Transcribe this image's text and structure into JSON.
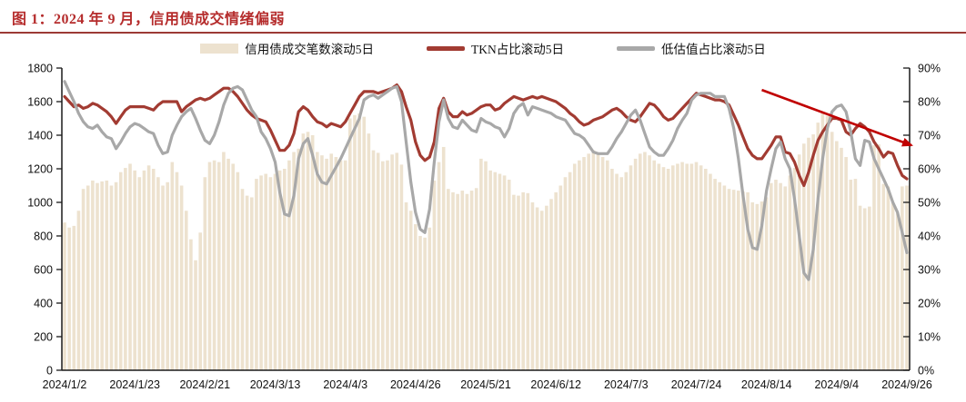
{
  "title": "图 1：2024 年 9 月，信用债成交情绪偏弱",
  "colors": {
    "title": "#B52C2C",
    "rule": "#9C3A35",
    "bar": "#EDE2CF",
    "tkn_line": "#A23B32",
    "undervalue_line": "#A8A8A8",
    "arrow": "#C00000",
    "axis": "#1a1a1a"
  },
  "legend": {
    "items": [
      {
        "label": "信用债成交笔数滚动5日",
        "type": "bar",
        "color": "#EDE2CF"
      },
      {
        "label": "TKN占比滚动5日",
        "type": "line",
        "color": "#A23B32"
      },
      {
        "label": "低估值占比滚动5日",
        "type": "line",
        "color": "#A8A8A8"
      }
    ]
  },
  "chart_data": {
    "type": "bar",
    "subtype": "bar+line combo, dual axis",
    "n_points": 181,
    "x_tick_labels": [
      "2024/1/2",
      "2024/1/23",
      "2024/2/21",
      "2024/3/13",
      "2024/4/3",
      "2024/4/26",
      "2024/5/21",
      "2024/6/12",
      "2024/7/3",
      "2024/7/24",
      "2024/8/14",
      "2024/9/4",
      "2024/9/26"
    ],
    "x_tick_indices": [
      0,
      15,
      30,
      45,
      60,
      75,
      90,
      105,
      120,
      135,
      150,
      165,
      180
    ],
    "left_axis": {
      "min": 0,
      "max": 1800,
      "step": 200,
      "ticks": [
        "0",
        "200",
        "400",
        "600",
        "800",
        "1000",
        "1200",
        "1400",
        "1600",
        "1800"
      ]
    },
    "right_axis": {
      "min": 0,
      "max": 90,
      "step": 10,
      "ticks": [
        "0%",
        "10%",
        "20%",
        "30%",
        "40%",
        "50%",
        "60%",
        "70%",
        "80%",
        "90%"
      ]
    },
    "series": [
      {
        "name": "信用债成交笔数滚动5日",
        "type": "bar",
        "axis": "left",
        "color": "#EDE2CF",
        "values": [
          880,
          850,
          860,
          950,
          1080,
          1100,
          1130,
          1115,
          1125,
          1130,
          1100,
          1120,
          1180,
          1205,
          1230,
          1190,
          1150,
          1190,
          1220,
          1200,
          1150,
          1100,
          1120,
          1240,
          1180,
          1100,
          950,
          780,
          655,
          820,
          1150,
          1240,
          1250,
          1240,
          1300,
          1260,
          1230,
          1180,
          1080,
          1040,
          1030,
          1140,
          1160,
          1170,
          1150,
          1170,
          1190,
          1200,
          1250,
          1300,
          1320,
          1410,
          1420,
          1400,
          1300,
          1280,
          1260,
          1290,
          1270,
          1250,
          1250,
          1500,
          1520,
          1530,
          1510,
          1410,
          1310,
          1295,
          1245,
          1250,
          1285,
          1295,
          1225,
          1000,
          950,
          870,
          800,
          790,
          850,
          1130,
          1240,
          1330,
          1080,
          1060,
          1050,
          1070,
          1050,
          1070,
          1085,
          1260,
          1245,
          1190,
          1180,
          1170,
          1160,
          1135,
          1045,
          1040,
          1060,
          1055,
          1000,
          970,
          950,
          980,
          1020,
          1060,
          1100,
          1150,
          1180,
          1230,
          1250,
          1270,
          1290,
          1310,
          1290,
          1270,
          1250,
          1200,
          1170,
          1150,
          1180,
          1220,
          1260,
          1290,
          1300,
          1280,
          1250,
          1230,
          1210,
          1200,
          1220,
          1230,
          1240,
          1230,
          1230,
          1240,
          1220,
          1200,
          1170,
          1140,
          1120,
          1100,
          1080,
          1075,
          1070,
          1065,
          1060,
          1000,
          990,
          1005,
          1030,
          1115,
          1135,
          1115,
          1095,
          1160,
          1205,
          1285,
          1350,
          1385,
          1405,
          1475,
          1530,
          1515,
          1420,
          1365,
          1325,
          1270,
          1135,
          1140,
          980,
          965,
          975,
          1340,
          1345,
          1110,
          1095,
          1000,
          940,
          1095,
          1100
        ]
      },
      {
        "name": "TKN占比滚动5日",
        "type": "line",
        "axis": "right",
        "color": "#A23B32",
        "values": [
          81.5,
          80,
          78.5,
          79,
          78,
          78.5,
          79.5,
          79,
          78,
          77,
          75.5,
          73.5,
          75.5,
          77.5,
          78.5,
          78.5,
          78.5,
          78.5,
          78,
          77.5,
          79,
          80,
          80,
          80,
          80,
          77,
          78.5,
          79.5,
          80.5,
          81,
          80.5,
          81,
          82,
          83,
          84,
          84,
          83,
          81.5,
          79.5,
          77.5,
          76,
          75,
          74.5,
          74,
          71.5,
          68.5,
          65.5,
          65.5,
          67,
          70.5,
          77,
          78.5,
          77.5,
          75.5,
          74,
          73.5,
          72.5,
          73.5,
          73,
          72.5,
          74,
          76.5,
          79,
          81.5,
          83,
          83,
          83,
          82.5,
          83,
          83.5,
          84,
          85,
          83,
          78.5,
          74.5,
          68,
          64,
          62.5,
          63.5,
          68,
          78,
          81,
          77,
          75.5,
          75.5,
          77,
          76,
          76.5,
          77.5,
          78.5,
          79,
          79,
          77.5,
          78,
          79.5,
          80.5,
          81.5,
          81,
          80.5,
          81,
          81.5,
          81,
          81.5,
          81,
          80.5,
          80,
          79,
          78,
          76.5,
          75.5,
          74,
          73,
          73.5,
          74.5,
          75,
          75.5,
          76.5,
          77.5,
          78,
          77,
          75.5,
          74.5,
          74,
          75.5,
          77.5,
          79.5,
          79,
          77.5,
          75.5,
          74.5,
          75,
          76.5,
          78,
          79.5,
          81,
          82.5,
          82,
          81.5,
          81,
          80.5,
          80.5,
          80,
          79,
          76,
          73,
          69.5,
          66,
          64,
          63,
          63,
          65,
          67,
          69.5,
          69.5,
          65,
          64.5,
          62,
          58,
          55,
          59,
          64,
          68.5,
          71,
          73,
          75,
          75,
          74.5,
          71,
          70,
          72,
          73.5,
          72.5,
          71,
          68,
          66,
          63.5,
          65,
          64.5,
          61,
          58,
          57
        ]
      },
      {
        "name": "低估值占比滚动5日",
        "type": "line",
        "axis": "right",
        "color": "#A8A8A8",
        "values": [
          86,
          83,
          80,
          76.5,
          74,
          72.5,
          72,
          73,
          71,
          69.5,
          69,
          66,
          68,
          70.5,
          72.5,
          73.5,
          73,
          72,
          71,
          70.5,
          67,
          64.5,
          65,
          70,
          73,
          75.5,
          77,
          78,
          75,
          71.5,
          68.5,
          67.5,
          70,
          74,
          79,
          82.5,
          84,
          84.5,
          83.5,
          80.5,
          77.5,
          75.5,
          71,
          69,
          66,
          62,
          53,
          46.5,
          46,
          52,
          63,
          67.5,
          69,
          64,
          58.5,
          56,
          55.5,
          58,
          60.5,
          63,
          66,
          69,
          72,
          75,
          80.5,
          81.5,
          82,
          81,
          82,
          83,
          84,
          84.5,
          80,
          68,
          56,
          47,
          42,
          41,
          48,
          62,
          74,
          80.5,
          75,
          72.5,
          72,
          74.5,
          73,
          71.5,
          71,
          75,
          74,
          73.5,
          72.5,
          72,
          69.5,
          72,
          76.5,
          78.5,
          79.5,
          76,
          78.5,
          78,
          77.5,
          77,
          76.5,
          75.5,
          75,
          74.5,
          72.5,
          70.5,
          70,
          69,
          67,
          65,
          64.5,
          64.5,
          64.5,
          66.5,
          69,
          71,
          73.5,
          76,
          77.5,
          74.5,
          70.5,
          66.5,
          65,
          64,
          64,
          66,
          68.5,
          72,
          74.5,
          76.5,
          80.5,
          82,
          82.5,
          82.5,
          82.5,
          81.5,
          81.5,
          81.5,
          78,
          72,
          63,
          52,
          42,
          36.5,
          36,
          43,
          53.5,
          60,
          66,
          68,
          63,
          60,
          51,
          40,
          29,
          27,
          36,
          51,
          63,
          72,
          77,
          78.5,
          79,
          77,
          71,
          63,
          61,
          68.5,
          68,
          63,
          60,
          57,
          54,
          50,
          47,
          41,
          35
        ]
      }
    ],
    "annotation_arrow": {
      "from_index": 149,
      "from_pct": 83.5,
      "to_index": 181,
      "to_pct": 67,
      "color": "#C00000"
    },
    "grid": "off",
    "legend_position": "top-center"
  }
}
